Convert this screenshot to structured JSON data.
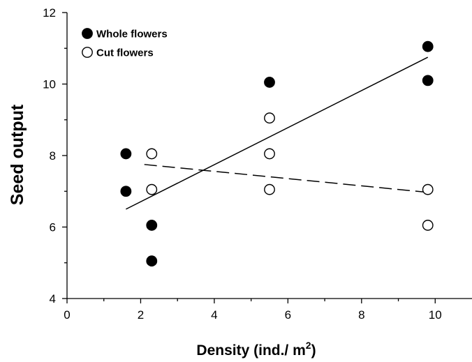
{
  "chart_data": {
    "type": "scatter",
    "xlabel": "Density (ind./ m",
    "xlabel_sup": "2",
    "xlabel_suffix": ")",
    "ylabel": "Seed output",
    "xlim": [
      0,
      11
    ],
    "ylim": [
      4,
      12
    ],
    "xticks": [
      "0",
      "2",
      "4",
      "6",
      "8",
      "10"
    ],
    "yticks": [
      "4",
      "6",
      "8",
      "10",
      "12"
    ],
    "grid": false,
    "legend_position": "top-left",
    "series": [
      {
        "name": "Whole flowers",
        "marker": "filled-circle",
        "color": "#000000",
        "points": [
          {
            "x": 1.6,
            "y": 8.05
          },
          {
            "x": 1.6,
            "y": 7.0
          },
          {
            "x": 2.3,
            "y": 6.05
          },
          {
            "x": 2.3,
            "y": 5.05
          },
          {
            "x": 5.5,
            "y": 10.05
          },
          {
            "x": 9.8,
            "y": 11.05
          },
          {
            "x": 9.8,
            "y": 10.1
          }
        ],
        "trendline": {
          "style": "solid",
          "x": [
            1.6,
            9.8
          ],
          "y": [
            6.5,
            10.75
          ]
        }
      },
      {
        "name": "Cut flowers",
        "marker": "open-circle",
        "color": "#000000",
        "points": [
          {
            "x": 2.3,
            "y": 8.05
          },
          {
            "x": 2.3,
            "y": 7.05
          },
          {
            "x": 5.5,
            "y": 9.05
          },
          {
            "x": 5.5,
            "y": 8.05
          },
          {
            "x": 5.5,
            "y": 7.05
          },
          {
            "x": 9.8,
            "y": 7.05
          },
          {
            "x": 9.8,
            "y": 6.05
          }
        ],
        "trendline": {
          "style": "dashed",
          "x": [
            2.1,
            9.8
          ],
          "y": [
            7.75,
            6.97
          ]
        }
      }
    ]
  }
}
